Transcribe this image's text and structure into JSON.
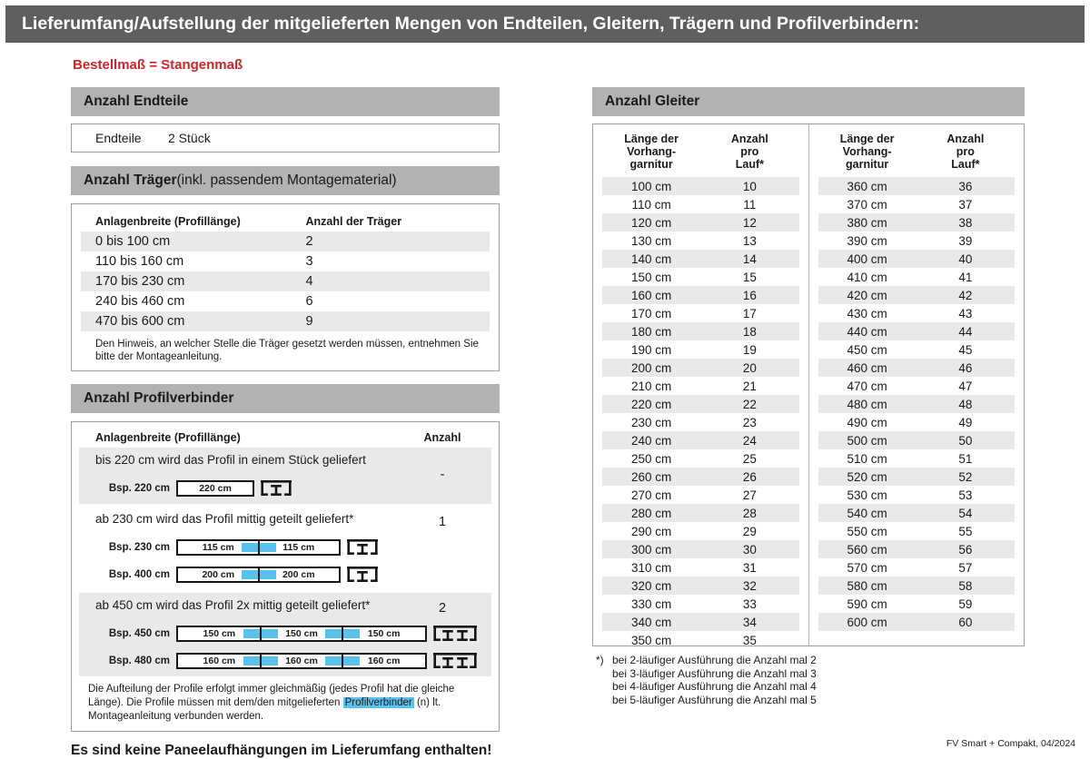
{
  "page": {
    "title": "Lieferumfang/Aufstellung der mitgelieferten Mengen von Endteilen, Gleitern, Trägern und Profilverbindern:",
    "subtitle": "Bestellmaß = Stangenmaß",
    "no_panel_note": "Es sind keine Paneelaufhängungen im Lieferumfang enthalten!",
    "footer": "FV Smart + Compakt, 04/2024"
  },
  "colors": {
    "title_bar_gray": "#5f5f5f",
    "section_bar_gray": "#b2b2b2",
    "stripe_gray": "#e9e9e9",
    "accent_red": "#d2232a",
    "accent_blue": "#55c3f0"
  },
  "endteile": {
    "heading": "Anzahl Endteile",
    "label": "Endteile",
    "value": "2 Stück"
  },
  "traeger": {
    "heading_bold": "Anzahl Träger",
    "heading_rest": " (inkl. passendem Montagematerial)",
    "col1": "Anlagenbreite (Profillänge)",
    "col2": "Anzahl der Träger",
    "rows": [
      [
        "0 bis 100 cm",
        "2"
      ],
      [
        "110 bis 160 cm",
        "3"
      ],
      [
        "170 bis 230 cm",
        "4"
      ],
      [
        "240 bis 460 cm",
        "6"
      ],
      [
        "470 bis 600 cm",
        "9"
      ]
    ],
    "note": "Den Hinweis, an welcher Stelle die Träger gesetzt werden müssen, entnehmen Sie bitte der Montageanleitung."
  },
  "profilverbinder": {
    "heading": "Anzahl Profilverbinder",
    "col1": "Anlagenbreite (Profillänge)",
    "col2": "Anzahl",
    "sections": [
      {
        "text": "bis 220 cm wird das Profil in einem Stück geliefert",
        "count": "-",
        "examples": [
          {
            "label": "Bsp. 220 cm",
            "segments": [
              "220 cm"
            ]
          }
        ]
      },
      {
        "text": "ab 230 cm wird das Profil mittig geteilt geliefert*",
        "count": "1",
        "examples": [
          {
            "label": "Bsp. 230 cm",
            "segments": [
              "115 cm",
              "115 cm"
            ]
          },
          {
            "label": "Bsp. 400 cm",
            "segments": [
              "200 cm",
              "200 cm"
            ]
          }
        ]
      },
      {
        "text": "ab 450 cm wird das Profil 2x mittig geteilt geliefert*",
        "count": "2",
        "examples": [
          {
            "label": "Bsp. 450 cm",
            "segments": [
              "150 cm",
              "150 cm",
              "150 cm"
            ]
          },
          {
            "label": "Bsp. 480 cm",
            "segments": [
              "160 cm",
              "160 cm",
              "160 cm"
            ]
          }
        ]
      }
    ],
    "note_before": "Die Aufteilung der Profile erfolgt immer gleichmäßig (jedes Profil hat die gleiche Länge). Die Profile müssen mit dem/den mitgelieferten ",
    "note_highlight": "Profilverbinder",
    "note_after": " (n) lt. Montageanleitung verbunden werden."
  },
  "gleiter": {
    "heading": "Anzahl Gleiter",
    "col1_lines": [
      "Länge der",
      "Vorhang-",
      "garnitur"
    ],
    "col2_lines": [
      "Anzahl",
      "pro",
      "Lauf*"
    ],
    "left_rows": [
      [
        "100 cm",
        "10"
      ],
      [
        "110 cm",
        "11"
      ],
      [
        "120 cm",
        "12"
      ],
      [
        "130 cm",
        "13"
      ],
      [
        "140 cm",
        "14"
      ],
      [
        "150 cm",
        "15"
      ],
      [
        "160 cm",
        "16"
      ],
      [
        "170 cm",
        "17"
      ],
      [
        "180 cm",
        "18"
      ],
      [
        "190 cm",
        "19"
      ],
      [
        "200 cm",
        "20"
      ],
      [
        "210 cm",
        "21"
      ],
      [
        "220 cm",
        "22"
      ],
      [
        "230 cm",
        "23"
      ],
      [
        "240 cm",
        "24"
      ],
      [
        "250 cm",
        "25"
      ],
      [
        "260 cm",
        "26"
      ],
      [
        "270 cm",
        "27"
      ],
      [
        "280 cm",
        "28"
      ],
      [
        "290 cm",
        "29"
      ],
      [
        "300 cm",
        "30"
      ],
      [
        "310 cm",
        "31"
      ],
      [
        "320 cm",
        "32"
      ],
      [
        "330 cm",
        "33"
      ],
      [
        "340 cm",
        "34"
      ],
      [
        "350 cm",
        "35"
      ]
    ],
    "right_rows": [
      [
        "360 cm",
        "36"
      ],
      [
        "370 cm",
        "37"
      ],
      [
        "380 cm",
        "38"
      ],
      [
        "390 cm",
        "39"
      ],
      [
        "400 cm",
        "40"
      ],
      [
        "410 cm",
        "41"
      ],
      [
        "420 cm",
        "42"
      ],
      [
        "430 cm",
        "43"
      ],
      [
        "440 cm",
        "44"
      ],
      [
        "450 cm",
        "45"
      ],
      [
        "460 cm",
        "46"
      ],
      [
        "470 cm",
        "47"
      ],
      [
        "480 cm",
        "48"
      ],
      [
        "490 cm",
        "49"
      ],
      [
        "500 cm",
        "50"
      ],
      [
        "510 cm",
        "51"
      ],
      [
        "520 cm",
        "52"
      ],
      [
        "530 cm",
        "53"
      ],
      [
        "540 cm",
        "54"
      ],
      [
        "550 cm",
        "55"
      ],
      [
        "560 cm",
        "56"
      ],
      [
        "570 cm",
        "57"
      ],
      [
        "580 cm",
        "58"
      ],
      [
        "590 cm",
        "59"
      ],
      [
        "600 cm",
        "60"
      ]
    ],
    "footnote_marker": "*)",
    "footnote": [
      "bei 2-läufiger Ausführung die Anzahl mal 2",
      "bei 3-läufiger Ausführung die Anzahl mal 3",
      "bei 4-läufiger Ausführung die Anzahl mal 4",
      "bei 5-läufiger Ausführung die Anzahl mal 5"
    ]
  }
}
